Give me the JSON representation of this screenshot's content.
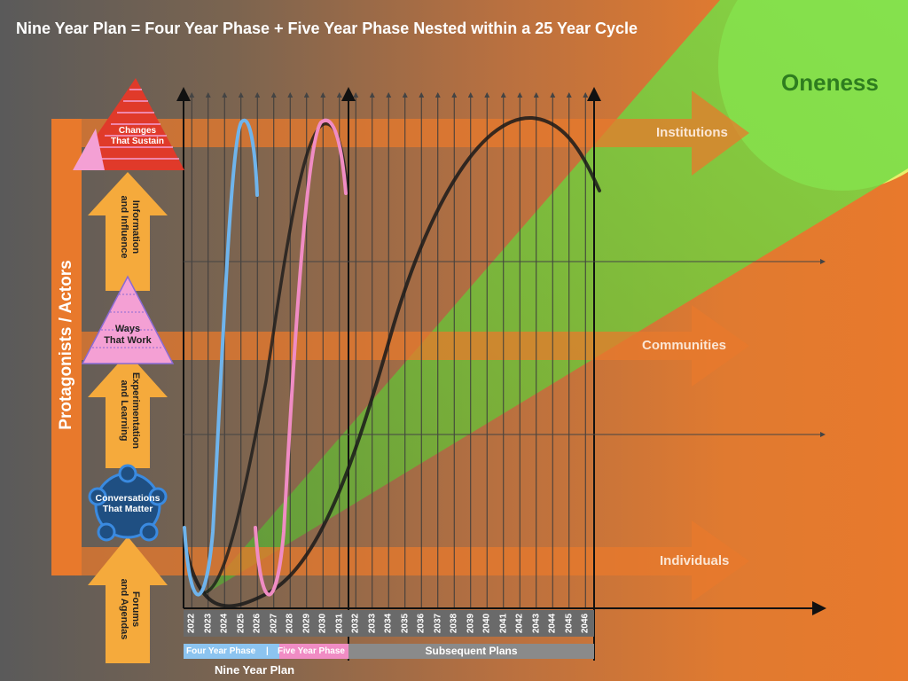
{
  "title": "Nine Year Plan = Four Year Phase + Five Year Phase Nested within a 25 Year Cycle",
  "goal": "Oneness",
  "side_label": "Protagonists / Actors",
  "bands": {
    "institutions": "Institutions",
    "communities": "Communities",
    "individuals": "Individuals"
  },
  "levels": {
    "changes": {
      "line1": "Changes",
      "line2": "That Sustain"
    },
    "information": {
      "line1": "Information",
      "line2": "and Influence"
    },
    "ways": {
      "line1": "Ways",
      "line2": "That Work"
    },
    "experimentation": {
      "line1": "Experimentation",
      "line2": "and Learning"
    },
    "conversations": {
      "line1": "Conversations",
      "line2": "That Matter"
    },
    "forums": {
      "line1": "Forums",
      "line2": "and Agendas"
    }
  },
  "years": [
    "2022",
    "2023",
    "2024",
    "2025",
    "2026",
    "2027",
    "2028",
    "2029",
    "2030",
    "2031",
    "2032",
    "2033",
    "2034",
    "2035",
    "2036",
    "2037",
    "2038",
    "2039",
    "2040",
    "2041",
    "2042",
    "2043",
    "2044",
    "2045",
    "2046"
  ],
  "phases": {
    "four_year": "Four Year Phase",
    "separator": "|",
    "five_year": "Five Year Phase",
    "subsequent": "Subsequent Plans",
    "nine_year": "Nine Year Plan"
  },
  "colors": {
    "four_year_curve": "#6fb4ec",
    "five_year_curve": "#f08cc4",
    "cycle_curve": "#1a1a1a",
    "arrow_band": "#e8792c",
    "level_arrow": "#f5aa3c",
    "pyramid_top": "#e03a2a",
    "pyramid_pink": "#f4a0d4",
    "conversations": "#1f4f82",
    "glow": "#6fd63a",
    "sun": "#e9ef6a"
  },
  "icons": {
    "top_pyramid": "pyramid-icon",
    "mid_pyramid": "triangle-icon",
    "circle_group": "people-circle-icon"
  }
}
